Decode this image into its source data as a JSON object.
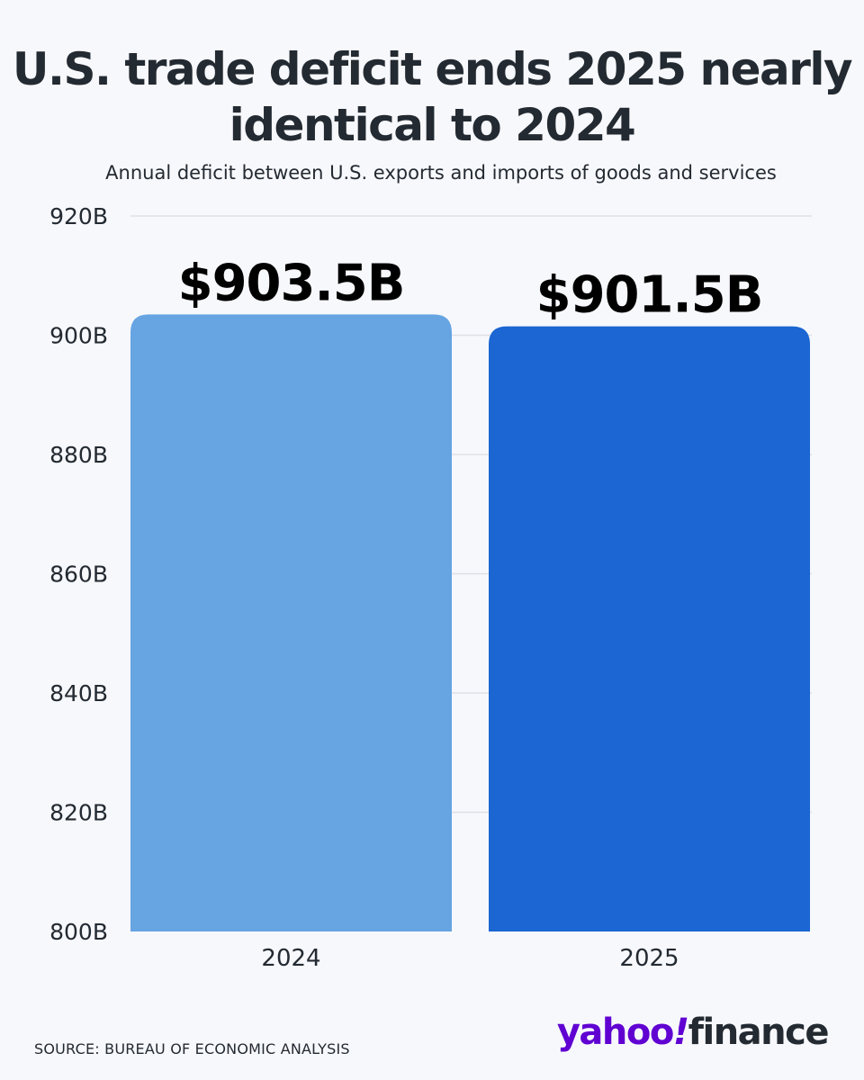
{
  "header": {
    "title": "U.S. trade deficit ends 2025 nearly identical to 2024",
    "subtitle": "Annual deficit between U.S. exports and imports of goods and services"
  },
  "footer": {
    "source": "SOURCE: BUREAU OF ECONOMIC ANALYSIS",
    "logo_yahoo": "yahoo",
    "logo_bang": "!",
    "logo_finance": "finance"
  },
  "colors": {
    "bar_2024": "#66a4e2",
    "bar_2025": "#1b66d2",
    "grid": "#dfe1e7",
    "text": "#232a31",
    "brand": "#6001d2"
  },
  "chart_data": {
    "type": "bar",
    "title": "U.S. trade deficit ends 2025 nearly identical to 2024",
    "subtitle": "Annual deficit between U.S. exports and imports of goods and services",
    "xlabel": "",
    "ylabel": "",
    "categories": [
      "2024",
      "2025"
    ],
    "values": [
      903.5,
      901.5
    ],
    "data_labels": [
      "$903.5B",
      "$901.5B"
    ],
    "ylim": [
      800,
      920
    ],
    "yticks": [
      800,
      820,
      840,
      860,
      880,
      900,
      920
    ],
    "ytick_labels": [
      "800B",
      "820B",
      "840B",
      "860B",
      "880B",
      "900B",
      "920B"
    ],
    "grid": true,
    "legend": "none"
  }
}
